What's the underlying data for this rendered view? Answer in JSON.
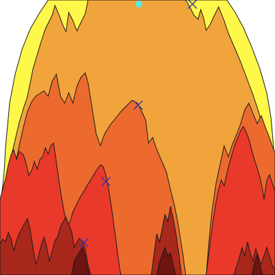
{
  "scene": {
    "colors": {
      "background": "#ffffff",
      "yellow": "#fdf84a",
      "orange": "#f1a43c",
      "dark_orange": "#ec6a2e",
      "red": "#e8392a",
      "dark_red": "#a8281c",
      "deepest": "#6f1410",
      "outline": "#1a1a1a",
      "marker_cross": "#3b2fa0",
      "marker_dot": "#5fe8e4"
    },
    "markers": [
      {
        "type": "dot",
        "color_key": "marker_dot"
      },
      {
        "type": "cross",
        "color_key": "marker_cross"
      },
      {
        "type": "cross",
        "color_key": "marker_cross"
      },
      {
        "type": "cross",
        "color_key": "marker_cross"
      },
      {
        "type": "cross",
        "color_key": "marker_cross"
      }
    ]
  }
}
